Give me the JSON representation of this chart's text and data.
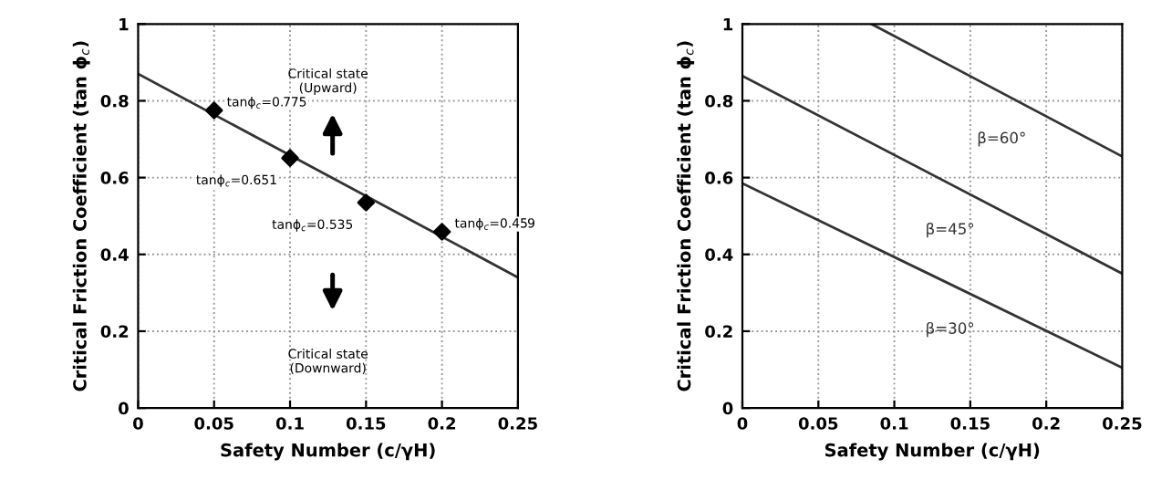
{
  "chart_data": [
    {
      "type": "scatter",
      "xlabel": "Safety Number (c/γH)",
      "ylabel": "Critical Friction Coefficient (tan ϕ$_{c}$)",
      "xlim": [
        0,
        0.25
      ],
      "ylim": [
        0,
        1
      ],
      "xticks": [
        0,
        0.05,
        0.1,
        0.15,
        0.2,
        0.25
      ],
      "yticks": [
        0,
        0.2,
        0.4,
        0.6,
        0.8,
        1
      ],
      "grid": true,
      "marker": "diamond",
      "annotations": [
        "Critical state\n(Upward)",
        "Critical state\n(Downward)"
      ],
      "series": [
        {
          "type": "line",
          "color": "#333333",
          "x": [
            0,
            0.25
          ],
          "values": [
            0.87,
            0.34
          ],
          "line_style": "solid",
          "marker": "none"
        },
        {
          "type": "scatter",
          "color": "#000000",
          "x": [
            0.05,
            0.1,
            0.15,
            0.2
          ],
          "values": [
            0.775,
            0.651,
            0.535,
            0.459
          ],
          "value_labels": [
            "tanϕ$_{c}$=0.775",
            "tanϕ$_{c}$=0.651",
            "tanϕ$_{c}$=0.535",
            "tanϕ$_{c}$=0.459"
          ]
        }
      ]
    },
    {
      "type": "line",
      "xlabel": "Safety Number (c/γH)",
      "ylabel": "Critical Friction Coefficient (tan ϕ$_{c}$)",
      "xlim": [
        0,
        0.25
      ],
      "ylim": [
        0,
        1
      ],
      "xticks": [
        0,
        0.05,
        0.1,
        0.15,
        0.2,
        0.25
      ],
      "yticks": [
        0,
        0.2,
        0.4,
        0.6,
        0.8,
        1
      ],
      "grid": true,
      "line_style": "solid",
      "marker": "none",
      "series": [
        {
          "name": "β=60°",
          "color": "#333333",
          "x": [
            0.085,
            0.25
          ],
          "values": [
            1,
            0.655
          ]
        },
        {
          "name": "β=45°",
          "color": "#333333",
          "x": [
            0,
            0.25
          ],
          "values": [
            0.865,
            0.35
          ]
        },
        {
          "name": "β=30°",
          "color": "#333333",
          "x": [
            0,
            0.25
          ],
          "values": [
            0.585,
            0.105
          ]
        }
      ]
    }
  ]
}
